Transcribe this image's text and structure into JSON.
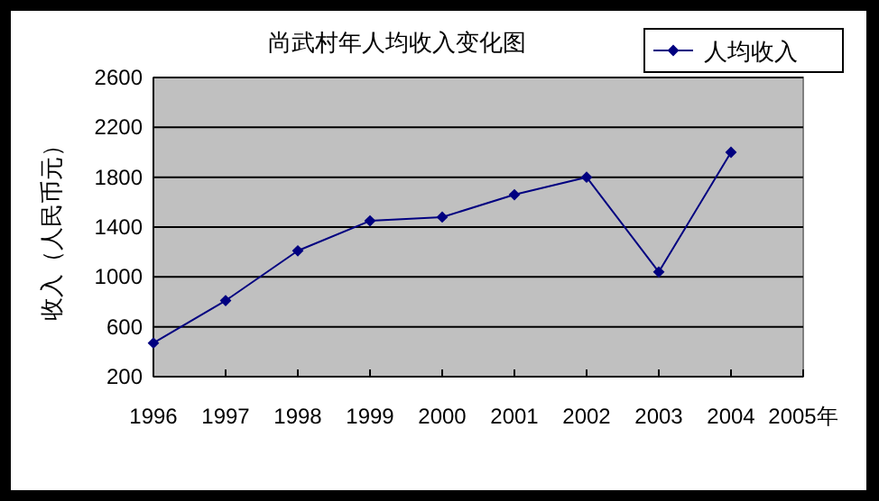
{
  "chart_data": {
    "type": "line",
    "title": "尚武村年人均收入变化图",
    "ylabel": "收入（人民币元）",
    "x": [
      1996,
      1997,
      1998,
      1999,
      2000,
      2001,
      2002,
      2003,
      2004
    ],
    "series": [
      {
        "name": "人均收入",
        "color": "#000080",
        "values": [
          470,
          810,
          1210,
          1450,
          1480,
          1660,
          1800,
          1040,
          2000
        ]
      }
    ],
    "xlim": [
      1996,
      2005
    ],
    "xticks": [
      1996,
      1997,
      1998,
      1999,
      2000,
      2001,
      2002,
      2003,
      2004,
      {
        "value": 2005,
        "label": "2005年"
      }
    ],
    "ylim": [
      200,
      2600
    ],
    "yticks": [
      200,
      600,
      1000,
      1400,
      1800,
      2200,
      2600
    ],
    "grid": "y",
    "legend": "top right",
    "marker": "diamond",
    "line_style": "solid"
  }
}
